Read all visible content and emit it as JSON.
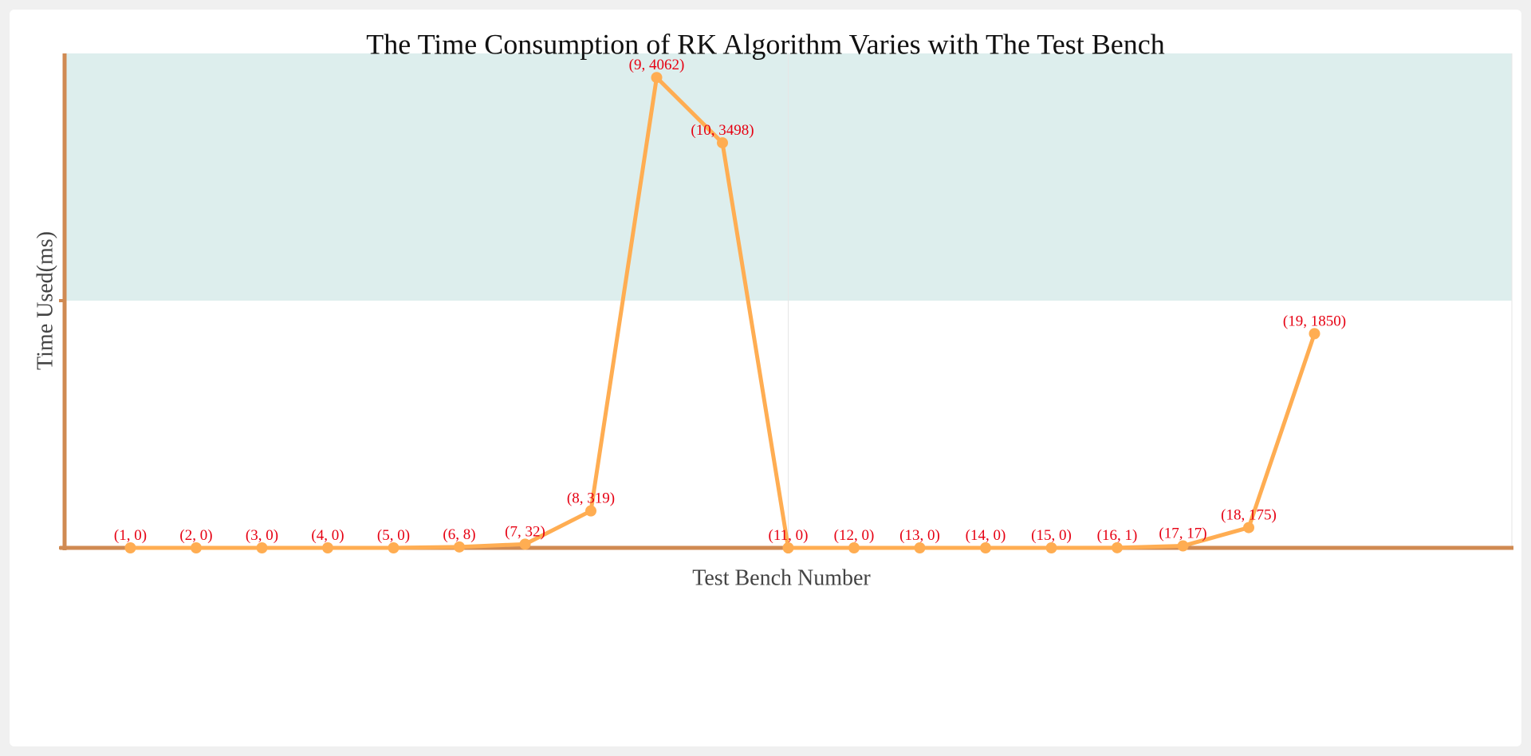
{
  "chart_data": {
    "type": "line",
    "title": "The Time Consumption of RK Algorithm Varies with The Test Bench",
    "xlabel": "Test Bench Number",
    "ylabel": "Time Used(ms)",
    "ylim": [
      0,
      4270
    ],
    "band": [
      2135,
      4270
    ],
    "grid": false,
    "series": [
      {
        "x": [
          1,
          2,
          3,
          4,
          5,
          6,
          7,
          8,
          9,
          10,
          11,
          12,
          13,
          14,
          15,
          16,
          17,
          18,
          19
        ],
        "values": [
          0,
          0,
          0,
          0,
          0,
          8,
          32,
          319,
          4062,
          3498,
          0,
          0,
          0,
          0,
          0,
          1,
          17,
          175,
          1850
        ]
      }
    ],
    "point_labels": [
      "(1, 0)",
      "(2, 0)",
      "(3, 0)",
      "(4, 0)",
      "(5, 0)",
      "(6, 8)",
      "(7, 32)",
      "(8, 319)",
      "(9, 4062)",
      "(10, 3498)",
      "(11, 0)",
      "(12, 0)",
      "(13, 0)",
      "(14, 0)",
      "(15, 0)",
      "(16, 1)",
      "(17, 17)",
      "(18, 175)",
      "(19, 1850)"
    ],
    "colors": {
      "line": "#ffad52",
      "axis": "#d08a52",
      "band": "#ddeeed",
      "label": "#e60012"
    }
  }
}
